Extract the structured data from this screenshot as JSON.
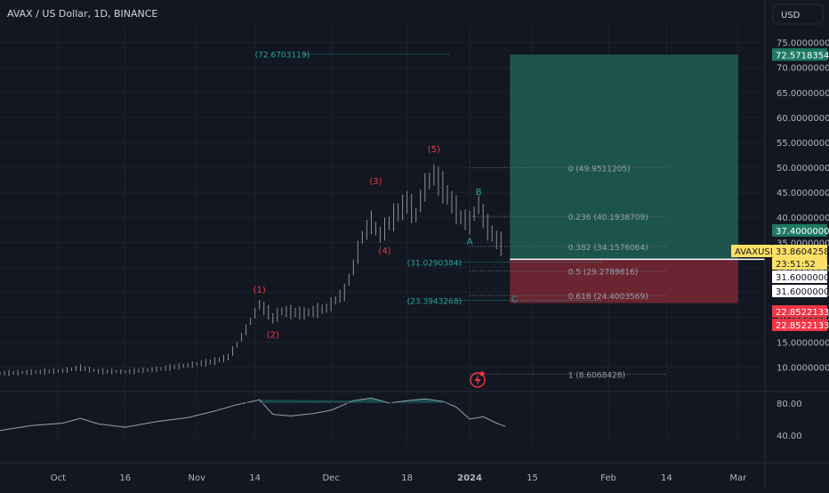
{
  "header": {
    "title": "AVAX / US Dollar, 1D, BINANCE",
    "currency": "USD"
  },
  "colors": {
    "background": "#131722",
    "grid": "#1e222d",
    "candle": "#8a8f9c",
    "wave_label": "#f23645",
    "corrective_label": "#26a69a",
    "profit_zone": "#1f5f55",
    "loss_zone": "#7a2833",
    "price_line": "#ffffff",
    "target_badge": "#1f7a63",
    "stop_badge": "#f23645",
    "current_badge": "#ffe066"
  },
  "chart_data": {
    "type": "candlestick",
    "symbol": "AVAXUSD",
    "price_axis": {
      "ticks": [
        "10.0000000",
        "15.0000000",
        "20.0000000",
        "25.0000000",
        "30.0000000",
        "35.0000000",
        "40.0000000",
        "45.0000000",
        "50.0000000",
        "55.0000000",
        "60.0000000",
        "65.0000000",
        "70.0000000",
        "75.0000000"
      ],
      "tick_values": [
        10,
        15,
        20,
        25,
        30,
        35,
        40,
        45,
        50,
        55,
        60,
        65,
        70,
        75
      ],
      "range": [
        5.5,
        78.5
      ]
    },
    "time_axis": {
      "labels": [
        {
          "text": "Oct",
          "date": "2023-10-01"
        },
        {
          "text": "16",
          "date": "2023-10-16"
        },
        {
          "text": "Nov",
          "date": "2023-11-01"
        },
        {
          "text": "14",
          "date": "2023-11-14"
        },
        {
          "text": "Dec",
          "date": "2023-12-01"
        },
        {
          "text": "18",
          "date": "2023-12-18"
        },
        {
          "text": "2024",
          "date": "2024-01-01"
        },
        {
          "text": "15",
          "date": "2024-01-15"
        },
        {
          "text": "Feb",
          "date": "2024-02-01"
        },
        {
          "text": "14",
          "date": "2024-02-14"
        },
        {
          "text": "Mar",
          "date": "2024-03-01"
        }
      ],
      "range": [
        "2023-09-18",
        "2024-03-07"
      ]
    },
    "price_series": [
      {
        "date": "2023-09-18",
        "close": 8.8
      },
      {
        "date": "2023-09-25",
        "close": 9.0
      },
      {
        "date": "2023-10-02",
        "close": 9.3
      },
      {
        "date": "2023-10-06",
        "close": 9.9
      },
      {
        "date": "2023-10-10",
        "close": 9.2
      },
      {
        "date": "2023-10-16",
        "close": 9.1
      },
      {
        "date": "2023-10-23",
        "close": 9.6
      },
      {
        "date": "2023-10-30",
        "close": 10.4
      },
      {
        "date": "2023-11-05",
        "close": 11.2
      },
      {
        "date": "2023-11-08",
        "close": 12.0
      },
      {
        "date": "2023-11-10",
        "close": 14.5
      },
      {
        "date": "2023-11-12",
        "close": 17.5
      },
      {
        "date": "2023-11-15",
        "close": 22.5
      },
      {
        "date": "2023-11-17",
        "close": 21.0
      },
      {
        "date": "2023-11-18",
        "close": 19.8
      },
      {
        "date": "2023-11-20",
        "close": 21.2
      },
      {
        "date": "2023-11-25",
        "close": 20.8
      },
      {
        "date": "2023-11-30",
        "close": 21.8
      },
      {
        "date": "2023-12-04",
        "close": 25.0
      },
      {
        "date": "2023-12-06",
        "close": 30.0
      },
      {
        "date": "2023-12-08",
        "close": 36.0
      },
      {
        "date": "2023-12-10",
        "close": 39.0
      },
      {
        "date": "2023-12-12",
        "close": 36.5
      },
      {
        "date": "2023-12-15",
        "close": 40.0
      },
      {
        "date": "2023-12-18",
        "close": 43.0
      },
      {
        "date": "2023-12-20",
        "close": 40.5
      },
      {
        "date": "2023-12-22",
        "close": 46.0
      },
      {
        "date": "2023-12-24",
        "close": 48.5
      },
      {
        "date": "2023-12-26",
        "close": 46.0
      },
      {
        "date": "2023-12-28",
        "close": 43.0
      },
      {
        "date": "2023-12-30",
        "close": 40.0
      },
      {
        "date": "2024-01-01",
        "close": 39.0
      },
      {
        "date": "2024-01-03",
        "close": 42.5
      },
      {
        "date": "2024-01-05",
        "close": 38.0
      },
      {
        "date": "2024-01-07",
        "close": 35.5
      },
      {
        "date": "2024-01-09",
        "close": 33.9
      }
    ],
    "oscillator": {
      "ticks": [
        "40.00",
        "80.00"
      ],
      "tick_values": [
        40,
        80
      ],
      "range": [
        28,
        92
      ],
      "series": [
        {
          "date": "2023-09-18",
          "value": 46
        },
        {
          "date": "2023-09-25",
          "value": 52
        },
        {
          "date": "2023-10-02",
          "value": 55
        },
        {
          "date": "2023-10-06",
          "value": 61
        },
        {
          "date": "2023-10-10",
          "value": 54
        },
        {
          "date": "2023-10-16",
          "value": 50
        },
        {
          "date": "2023-10-23",
          "value": 57
        },
        {
          "date": "2023-10-30",
          "value": 62
        },
        {
          "date": "2023-11-05",
          "value": 70
        },
        {
          "date": "2023-11-10",
          "value": 78
        },
        {
          "date": "2023-11-15",
          "value": 84
        },
        {
          "date": "2023-11-18",
          "value": 66
        },
        {
          "date": "2023-11-22",
          "value": 64
        },
        {
          "date": "2023-11-27",
          "value": 67
        },
        {
          "date": "2023-12-01",
          "value": 71
        },
        {
          "date": "2023-12-06",
          "value": 83
        },
        {
          "date": "2023-12-10",
          "value": 86
        },
        {
          "date": "2023-12-14",
          "value": 80
        },
        {
          "date": "2023-12-18",
          "value": 83
        },
        {
          "date": "2023-12-22",
          "value": 85
        },
        {
          "date": "2023-12-26",
          "value": 82
        },
        {
          "date": "2023-12-29",
          "value": 75
        },
        {
          "date": "2024-01-01",
          "value": 60
        },
        {
          "date": "2024-01-04",
          "value": 63
        },
        {
          "date": "2024-01-07",
          "value": 55
        },
        {
          "date": "2024-01-09",
          "value": 51
        }
      ]
    },
    "wave_labels": [
      {
        "text": "(1)",
        "date": "2023-11-15",
        "y": 24.9,
        "kind": "impulse"
      },
      {
        "text": "(2)",
        "date": "2023-11-18",
        "y": 15.9,
        "kind": "impulse"
      },
      {
        "text": "(3)",
        "date": "2023-12-11",
        "y": 46.6,
        "kind": "impulse"
      },
      {
        "text": "(4)",
        "date": "2023-12-13",
        "y": 32.7,
        "kind": "impulse"
      },
      {
        "text": "(5)",
        "date": "2023-12-24",
        "y": 53.0,
        "kind": "impulse"
      },
      {
        "text": "A",
        "date": "2024-01-01",
        "y": 34.6,
        "kind": "corrective"
      },
      {
        "text": "B",
        "date": "2024-01-03",
        "y": 44.5,
        "kind": "corrective"
      },
      {
        "text": "C",
        "date": "2024-01-11",
        "y": 23.0,
        "kind": "corrective"
      }
    ],
    "fib_levels": [
      {
        "text": "0 (49.9511205)",
        "value": 49.9511205
      },
      {
        "text": "0.236 (40.1938709)",
        "value": 40.1938709
      },
      {
        "text": "0.382 (34.1576064)",
        "value": 34.1576064
      },
      {
        "text": "0.5 (29.2789816)",
        "value": 29.2789816
      },
      {
        "text": "0.618 (24.4003569)",
        "value": 24.4003569
      },
      {
        "text": "1 (8.6068428)",
        "value": 8.6068428
      }
    ],
    "fib_extension_labels": [
      {
        "text": "(72.6703119)",
        "value": 72.6703119
      },
      {
        "text": "(31.0290384)",
        "value": 31.0290384
      },
      {
        "text": "(23.3943268)",
        "value": 23.3943268
      }
    ],
    "position": {
      "type": "long",
      "start_date": "2024-01-10",
      "end_date": "2024-03-01",
      "target": 72.5718354,
      "entry": 31.6,
      "stop": 22.8522133
    },
    "current_price": 33.8604258,
    "last_price_line": 31.6
  },
  "badges": {
    "target": "72.5718354",
    "secondary": "37.4000000",
    "symbol": "AVAXUSD",
    "current": "33.8604258",
    "countdown": "23:51:52",
    "entry_1": "31.6000000",
    "entry_2": "31.6000000",
    "stop_1": "22.8522133",
    "stop_2": "22.8522133"
  }
}
